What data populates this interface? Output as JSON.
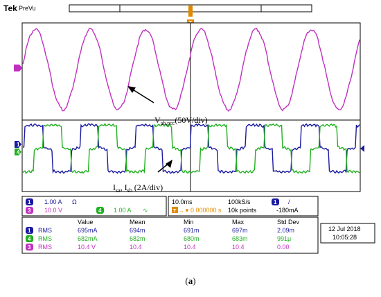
{
  "header": {
    "brand": "Tek",
    "mode": "PreVu"
  },
  "colors": {
    "ch1": "#1a1aa0",
    "ch3": "#c030c0",
    "ch4": "#20b020",
    "trigger": "#e08a00"
  },
  "annotations": {
    "voltage": {
      "main": "V",
      "sub": "ab,pcc",
      "rest": "(50V/div)"
    },
    "current": {
      "main": "I",
      "sub1": "sa",
      "sep": ", I",
      "sub2": "sb",
      "rest": " (2A/div)"
    }
  },
  "channels": [
    {
      "id": "1",
      "scale": "1.00 A",
      "suffix": "Ω"
    },
    {
      "id": "3",
      "scale": "10.0 V",
      "suffix": ""
    },
    {
      "id": "4",
      "scale": "1.00 A",
      "suffix": "∿"
    }
  ],
  "timebase": {
    "time_div": "10.0ms",
    "sample_rate": "100kS/s",
    "trigger_pos": "0.000000 s",
    "record": "10k points",
    "trig_channel": "1",
    "trig_slope": "/",
    "trig_level": "-180mA"
  },
  "measurements": {
    "headers": [
      "Value",
      "Mean",
      "Min",
      "Max",
      "Std Dev"
    ],
    "rows": [
      {
        "ch": "1",
        "type": "RMS",
        "values": [
          "695mA",
          "694m",
          "691m",
          "697m",
          "2.09m"
        ]
      },
      {
        "ch": "4",
        "type": "RMS",
        "values": [
          "682mA",
          "682m",
          "680m",
          "683m",
          "991μ"
        ]
      },
      {
        "ch": "3",
        "type": "RMS",
        "values": [
          "10.4 V",
          "10.4",
          "10.4",
          "10.4",
          "0.00"
        ]
      }
    ]
  },
  "datetime": {
    "date": "12 Jul  2018",
    "time": "10:05:28"
  },
  "caption": {
    "open": "(",
    "letter": "a",
    "close": ")"
  }
}
